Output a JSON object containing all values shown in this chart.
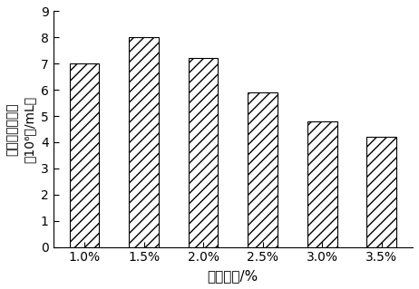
{
  "categories": [
    "1.0%",
    "1.5%",
    "2.0%",
    "2.5%",
    "3.0%",
    "3.5%"
  ],
  "values": [
    7.0,
    8.0,
    7.2,
    5.9,
    4.8,
    4.2
  ],
  "xlabel": "酵液浓度/%",
  "ylabel_line1": "原生质体数目／",
  "ylabel_line2": "（10⁶个/mL）",
  "ylim": [
    0,
    9
  ],
  "yticks": [
    0,
    1,
    2,
    3,
    4,
    5,
    6,
    7,
    8,
    9
  ],
  "hatch": "///",
  "bar_width": 0.5,
  "background_color": "#ffffff",
  "xlabel_fontsize": 11,
  "ylabel_fontsize": 10,
  "tick_fontsize": 10,
  "figure_facecolor": "#ffffff"
}
